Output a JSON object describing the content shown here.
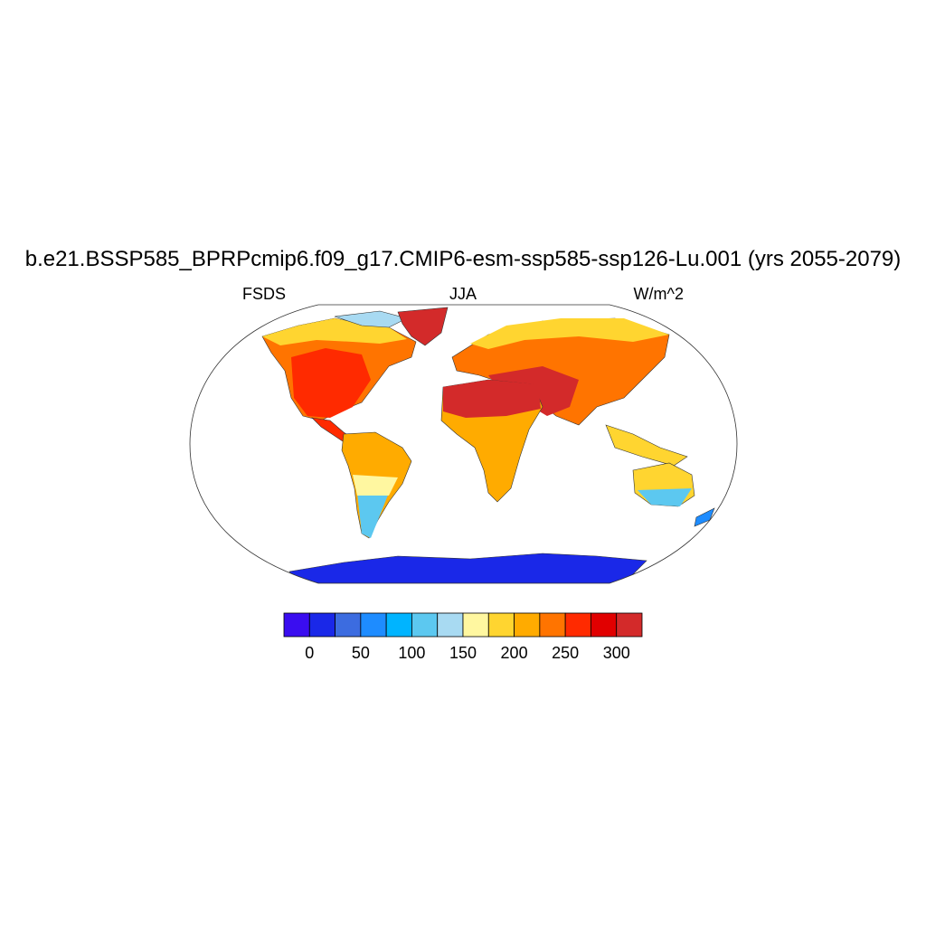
{
  "title": "b.e21.BSSP585_BPRPcmip6.f09_g17.CMIP6-esm-ssp585-ssp126-Lu.001 (yrs 2055-2079)",
  "variable": "FSDS",
  "season": "JJA",
  "units": "W/m^2",
  "colorbar": {
    "colors": [
      "#3a0df0",
      "#1a28e8",
      "#3c6ce0",
      "#1e8cff",
      "#00b4ff",
      "#5cc8f0",
      "#a8daf2",
      "#fff7a0",
      "#ffd530",
      "#ffab00",
      "#ff7400",
      "#ff2a00",
      "#e10000",
      "#d32a2a"
    ],
    "tick_labels": [
      "0",
      "50",
      "100",
      "150",
      "200",
      "250",
      "300"
    ]
  },
  "land_colors": {
    "antarctica": "#1a28e8",
    "greenland": "#d32a2a",
    "desert": "#d32a2a"
  }
}
